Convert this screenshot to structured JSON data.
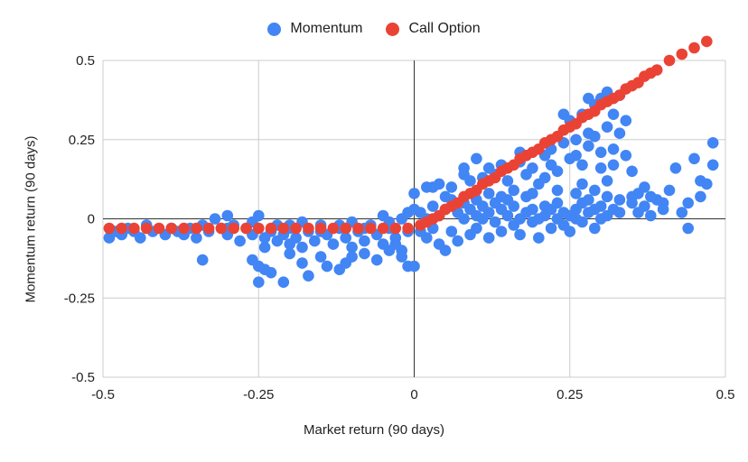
{
  "chart_data": {
    "type": "scatter",
    "xlabel": "Market return (90 days)",
    "ylabel": "Momentum return (90 days)",
    "xlim": [
      -0.5,
      0.5
    ],
    "ylim": [
      -0.5,
      0.5
    ],
    "x_ticks": [
      -0.5,
      -0.25,
      0,
      0.25,
      0.5
    ],
    "y_ticks": [
      0.5,
      0.25,
      0,
      -0.25,
      -0.5
    ],
    "x_tick_labels": [
      "-0.5",
      "-0.25",
      "0",
      "0.25",
      "0.5"
    ],
    "y_tick_labels": [
      "0.5",
      "0.25",
      "0",
      "-0.25",
      "-0.5"
    ],
    "grid": true,
    "legend_position": "top-center",
    "colors": {
      "Momentum": "#4285f4",
      "Call Option": "#ea4335"
    },
    "series": [
      {
        "name": "Momentum",
        "points": [
          [
            -0.49,
            -0.06
          ],
          [
            -0.48,
            -0.04
          ],
          [
            -0.47,
            -0.05
          ],
          [
            -0.46,
            -0.03
          ],
          [
            -0.45,
            -0.04
          ],
          [
            -0.44,
            -0.06
          ],
          [
            -0.43,
            -0.02
          ],
          [
            -0.42,
            -0.04
          ],
          [
            -0.4,
            -0.05
          ],
          [
            -0.39,
            -0.03
          ],
          [
            -0.38,
            -0.04
          ],
          [
            -0.37,
            -0.05
          ],
          [
            -0.36,
            -0.03
          ],
          [
            -0.35,
            -0.06
          ],
          [
            -0.34,
            -0.02
          ],
          [
            -0.33,
            -0.04
          ],
          [
            -0.32,
            0.0
          ],
          [
            -0.31,
            -0.03
          ],
          [
            -0.3,
            0.01
          ],
          [
            -0.3,
            -0.05
          ],
          [
            -0.29,
            -0.02
          ],
          [
            -0.28,
            -0.07
          ],
          [
            -0.27,
            -0.03
          ],
          [
            -0.26,
            -0.05
          ],
          [
            -0.25,
            0.01
          ],
          [
            -0.24,
            -0.06
          ],
          [
            -0.24,
            -0.09
          ],
          [
            -0.23,
            -0.04
          ],
          [
            -0.22,
            -0.07
          ],
          [
            -0.22,
            -0.02
          ],
          [
            -0.21,
            -0.05
          ],
          [
            -0.2,
            -0.08
          ],
          [
            -0.2,
            -0.03
          ],
          [
            -0.19,
            -0.06
          ],
          [
            -0.18,
            -0.01
          ],
          [
            -0.18,
            -0.09
          ],
          [
            -0.17,
            -0.04
          ],
          [
            -0.16,
            -0.07
          ],
          [
            -0.15,
            -0.02
          ],
          [
            -0.14,
            -0.05
          ],
          [
            -0.13,
            -0.08
          ],
          [
            -0.12,
            -0.03
          ],
          [
            -0.11,
            -0.06
          ],
          [
            -0.1,
            -0.01
          ],
          [
            -0.1,
            -0.09
          ],
          [
            -0.09,
            -0.04
          ],
          [
            -0.08,
            -0.07
          ],
          [
            -0.07,
            -0.02
          ],
          [
            -0.06,
            -0.05
          ],
          [
            -0.05,
            0.01
          ],
          [
            -0.05,
            -0.08
          ],
          [
            -0.04,
            -0.03
          ],
          [
            -0.03,
            -0.06
          ],
          [
            -0.02,
            0.0
          ],
          [
            -0.02,
            -0.1
          ],
          [
            -0.01,
            -0.04
          ],
          [
            -0.01,
            0.02
          ],
          [
            -0.3,
            -0.03
          ],
          [
            -0.26,
            -0.01
          ],
          [
            -0.2,
            -0.02
          ],
          [
            -0.15,
            -0.04
          ],
          [
            -0.12,
            -0.02
          ],
          [
            -0.08,
            -0.03
          ],
          [
            -0.04,
            -0.01
          ],
          [
            -0.34,
            -0.13
          ],
          [
            -0.26,
            -0.13
          ],
          [
            -0.25,
            -0.15
          ],
          [
            -0.25,
            -0.2
          ],
          [
            -0.24,
            -0.16
          ],
          [
            -0.23,
            -0.17
          ],
          [
            -0.21,
            -0.2
          ],
          [
            -0.2,
            -0.11
          ],
          [
            -0.18,
            -0.14
          ],
          [
            -0.17,
            -0.18
          ],
          [
            -0.15,
            -0.12
          ],
          [
            -0.14,
            -0.15
          ],
          [
            -0.12,
            -0.16
          ],
          [
            -0.11,
            -0.14
          ],
          [
            -0.1,
            -0.12
          ],
          [
            -0.08,
            -0.11
          ],
          [
            -0.06,
            -0.13
          ],
          [
            -0.04,
            -0.1
          ],
          [
            -0.02,
            -0.12
          ],
          [
            -0.01,
            -0.15
          ],
          [
            0.0,
            -0.15
          ],
          [
            -0.03,
            -0.08
          ],
          [
            0.01,
            -0.04
          ],
          [
            0.01,
            0.02
          ],
          [
            0.02,
            -0.06
          ],
          [
            0.02,
            0.0
          ],
          [
            0.03,
            -0.03
          ],
          [
            0.03,
            0.04
          ],
          [
            0.04,
            -0.08
          ],
          [
            0.04,
            0.01
          ],
          [
            0.05,
            -0.1
          ],
          [
            0.05,
            0.03
          ],
          [
            0.06,
            -0.04
          ],
          [
            0.06,
            0.06
          ],
          [
            0.07,
            -0.07
          ],
          [
            0.07,
            0.02
          ],
          [
            0.08,
            0.0
          ],
          [
            0.08,
            0.05
          ],
          [
            0.09,
            -0.05
          ],
          [
            0.09,
            0.03
          ],
          [
            0.1,
            0.01
          ],
          [
            0.1,
            -0.03
          ],
          [
            0.11,
            0.04
          ],
          [
            0.11,
            0.0
          ],
          [
            0.12,
            -0.06
          ],
          [
            0.12,
            0.02
          ],
          [
            0.13,
            0.05
          ],
          [
            0.13,
            -0.01
          ],
          [
            0.14,
            0.03
          ],
          [
            0.14,
            -0.04
          ],
          [
            0.15,
            0.01
          ],
          [
            0.15,
            0.06
          ],
          [
            0.16,
            -0.02
          ],
          [
            0.16,
            0.04
          ],
          [
            0.17,
            0.0
          ],
          [
            0.17,
            -0.05
          ],
          [
            0.18,
            0.02
          ],
          [
            0.18,
            0.07
          ],
          [
            0.19,
            -0.01
          ],
          [
            0.19,
            0.03
          ],
          [
            0.2,
            0.0
          ],
          [
            0.2,
            -0.06
          ],
          [
            0.21,
            0.04
          ],
          [
            0.21,
            0.01
          ],
          [
            0.22,
            -0.03
          ],
          [
            0.22,
            0.03
          ],
          [
            0.23,
            0.0
          ],
          [
            0.23,
            0.05
          ],
          [
            0.24,
            -0.02
          ],
          [
            0.24,
            0.02
          ],
          [
            0.25,
            0.01
          ],
          [
            0.25,
            -0.04
          ],
          [
            0.26,
            0.03
          ],
          [
            0.26,
            0.0
          ],
          [
            0.27,
            0.05
          ],
          [
            0.27,
            -0.01
          ],
          [
            0.28,
            0.02
          ],
          [
            0.28,
            0.06
          ],
          [
            0.29,
            -0.03
          ],
          [
            0.29,
            0.03
          ],
          [
            0.3,
            0.0
          ],
          [
            0.3,
            0.04
          ],
          [
            0.31,
            0.01
          ],
          [
            0.31,
            0.07
          ],
          [
            0.32,
            0.03
          ],
          [
            0.33,
            0.02
          ],
          [
            0.35,
            0.05
          ],
          [
            0.36,
            0.02
          ],
          [
            0.37,
            0.04
          ],
          [
            0.38,
            0.01
          ],
          [
            0.39,
            0.06
          ],
          [
            0.4,
            0.03
          ],
          [
            0.0,
            0.08
          ],
          [
            0.0,
            0.03
          ],
          [
            0.02,
            0.1
          ],
          [
            0.03,
            0.1
          ],
          [
            0.04,
            0.11
          ],
          [
            0.05,
            0.07
          ],
          [
            0.06,
            0.1
          ],
          [
            0.08,
            0.14
          ],
          [
            0.08,
            0.16
          ],
          [
            0.09,
            0.12
          ],
          [
            0.1,
            0.19
          ],
          [
            0.11,
            0.13
          ],
          [
            0.12,
            0.16
          ],
          [
            0.13,
            0.14
          ],
          [
            0.14,
            0.17
          ],
          [
            0.15,
            0.12
          ],
          [
            0.17,
            0.18
          ],
          [
            0.17,
            0.21
          ],
          [
            0.18,
            0.14
          ],
          [
            0.18,
            0.2
          ],
          [
            0.19,
            0.16
          ],
          [
            0.2,
            0.11
          ],
          [
            0.21,
            0.2
          ],
          [
            0.21,
            0.13
          ],
          [
            0.22,
            0.17
          ],
          [
            0.22,
            0.22
          ],
          [
            0.23,
            0.15
          ],
          [
            0.24,
            0.24
          ],
          [
            0.24,
            0.33
          ],
          [
            0.25,
            0.31
          ],
          [
            0.25,
            0.19
          ],
          [
            0.26,
            0.2
          ],
          [
            0.26,
            0.25
          ],
          [
            0.27,
            0.17
          ],
          [
            0.27,
            0.33
          ],
          [
            0.28,
            0.38
          ],
          [
            0.28,
            0.27
          ],
          [
            0.29,
            0.26
          ],
          [
            0.29,
            0.36
          ],
          [
            0.3,
            0.21
          ],
          [
            0.3,
            0.38
          ],
          [
            0.31,
            0.29
          ],
          [
            0.31,
            0.4
          ],
          [
            0.32,
            0.33
          ],
          [
            0.32,
            0.22
          ],
          [
            0.33,
            0.39
          ],
          [
            0.33,
            0.27
          ],
          [
            0.34,
            0.31
          ],
          [
            0.34,
            0.2
          ],
          [
            0.28,
            0.23
          ],
          [
            0.3,
            0.16
          ],
          [
            0.32,
            0.17
          ],
          [
            0.35,
            0.15
          ],
          [
            0.37,
            0.1
          ],
          [
            0.38,
            0.07
          ],
          [
            0.36,
            0.08
          ],
          [
            0.4,
            0.05
          ],
          [
            0.41,
            0.09
          ],
          [
            0.43,
            0.02
          ],
          [
            0.44,
            0.05
          ],
          [
            0.42,
            0.16
          ],
          [
            0.45,
            0.19
          ],
          [
            0.46,
            0.12
          ],
          [
            0.47,
            0.11
          ],
          [
            0.48,
            0.24
          ],
          [
            0.48,
            0.17
          ],
          [
            0.44,
            -0.03
          ],
          [
            0.46,
            0.07
          ],
          [
            0.26,
            0.08
          ],
          [
            0.27,
            0.11
          ],
          [
            0.31,
            0.12
          ],
          [
            0.29,
            0.09
          ],
          [
            0.33,
            0.06
          ],
          [
            0.35,
            0.07
          ],
          [
            0.23,
            0.09
          ],
          [
            0.19,
            0.08
          ],
          [
            0.16,
            0.09
          ],
          [
            0.14,
            0.07
          ],
          [
            0.12,
            0.08
          ],
          [
            0.1,
            0.06
          ]
        ]
      },
      {
        "name": "Call Option",
        "points": [
          [
            -0.49,
            -0.03
          ],
          [
            -0.47,
            -0.03
          ],
          [
            -0.45,
            -0.03
          ],
          [
            -0.43,
            -0.03
          ],
          [
            -0.41,
            -0.03
          ],
          [
            -0.39,
            -0.03
          ],
          [
            -0.37,
            -0.03
          ],
          [
            -0.35,
            -0.03
          ],
          [
            -0.33,
            -0.03
          ],
          [
            -0.31,
            -0.03
          ],
          [
            -0.29,
            -0.03
          ],
          [
            -0.27,
            -0.03
          ],
          [
            -0.25,
            -0.03
          ],
          [
            -0.23,
            -0.03
          ],
          [
            -0.21,
            -0.03
          ],
          [
            -0.19,
            -0.03
          ],
          [
            -0.17,
            -0.03
          ],
          [
            -0.15,
            -0.03
          ],
          [
            -0.13,
            -0.03
          ],
          [
            -0.11,
            -0.03
          ],
          [
            -0.09,
            -0.03
          ],
          [
            -0.07,
            -0.03
          ],
          [
            -0.05,
            -0.03
          ],
          [
            -0.03,
            -0.03
          ],
          [
            -0.01,
            -0.03
          ],
          [
            0.01,
            -0.02
          ],
          [
            0.02,
            -0.01
          ],
          [
            0.03,
            0.0
          ],
          [
            0.04,
            0.01
          ],
          [
            0.05,
            0.03
          ],
          [
            0.06,
            0.04
          ],
          [
            0.07,
            0.05
          ],
          [
            0.08,
            0.07
          ],
          [
            0.09,
            0.08
          ],
          [
            0.1,
            0.09
          ],
          [
            0.11,
            0.11
          ],
          [
            0.12,
            0.12
          ],
          [
            0.13,
            0.13
          ],
          [
            0.14,
            0.15
          ],
          [
            0.15,
            0.16
          ],
          [
            0.16,
            0.17
          ],
          [
            0.17,
            0.19
          ],
          [
            0.18,
            0.2
          ],
          [
            0.19,
            0.21
          ],
          [
            0.2,
            0.22
          ],
          [
            0.21,
            0.24
          ],
          [
            0.22,
            0.25
          ],
          [
            0.23,
            0.26
          ],
          [
            0.24,
            0.28
          ],
          [
            0.25,
            0.29
          ],
          [
            0.26,
            0.3
          ],
          [
            0.27,
            0.32
          ],
          [
            0.28,
            0.33
          ],
          [
            0.29,
            0.34
          ],
          [
            0.3,
            0.36
          ],
          [
            0.31,
            0.37
          ],
          [
            0.32,
            0.38
          ],
          [
            0.33,
            0.39
          ],
          [
            0.34,
            0.41
          ],
          [
            0.35,
            0.42
          ],
          [
            0.36,
            0.43
          ],
          [
            0.37,
            0.45
          ],
          [
            0.38,
            0.46
          ],
          [
            0.39,
            0.47
          ],
          [
            0.41,
            0.5
          ],
          [
            0.43,
            0.52
          ],
          [
            0.45,
            0.54
          ],
          [
            0.47,
            0.56
          ]
        ]
      }
    ]
  }
}
